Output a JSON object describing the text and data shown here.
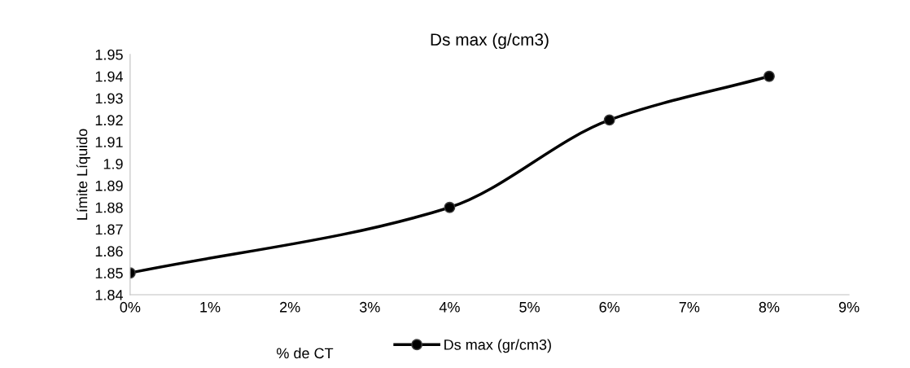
{
  "chart_data": {
    "type": "line",
    "title": "Ds max (g/cm3)",
    "xlabel": "% de CT",
    "ylabel": "Límite Líquido",
    "x": [
      0,
      4,
      6,
      8
    ],
    "series": [
      {
        "name": "Ds max (gr/cm3)",
        "color": "#000000",
        "values": [
          1.85,
          1.88,
          1.92,
          1.94
        ]
      }
    ],
    "xlim": [
      0,
      9
    ],
    "xticks": [
      {
        "value": 0,
        "label": "0%"
      },
      {
        "value": 1,
        "label": "1%"
      },
      {
        "value": 2,
        "label": "2%"
      },
      {
        "value": 3,
        "label": "3%"
      },
      {
        "value": 4,
        "label": "4%"
      },
      {
        "value": 5,
        "label": "5%"
      },
      {
        "value": 6,
        "label": "6%"
      },
      {
        "value": 7,
        "label": "7%"
      },
      {
        "value": 8,
        "label": "8%"
      },
      {
        "value": 9,
        "label": "9%"
      }
    ],
    "ylim": [
      1.84,
      1.95
    ],
    "yticks": [
      1.84,
      1.85,
      1.86,
      1.87,
      1.88,
      1.89,
      1.9,
      1.91,
      1.92,
      1.93,
      1.94,
      1.95
    ],
    "grid": false,
    "legend": "bottom",
    "marker": "circle",
    "line_style": "solid"
  }
}
